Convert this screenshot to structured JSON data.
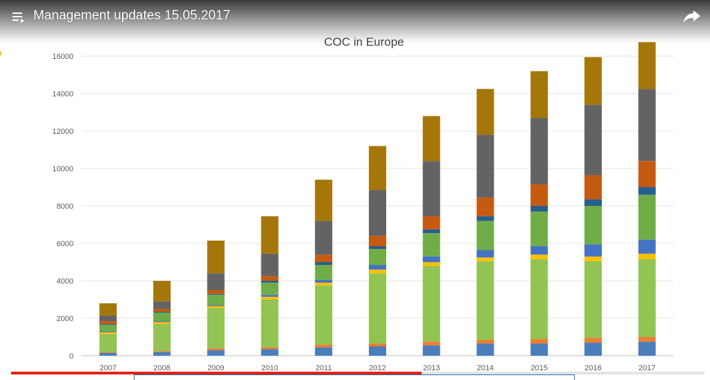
{
  "video": {
    "title": "Management updates 15.05.2017",
    "progress": 0.592,
    "icons": {
      "menu": "playlist-icon",
      "share": "share-icon"
    }
  },
  "chart_data": {
    "type": "bar",
    "stacked": true,
    "title": "COC in Europe",
    "xlabel": "",
    "ylabel": "",
    "ylim": [
      0,
      16000
    ],
    "yticks": [
      0,
      2000,
      4000,
      6000,
      8000,
      10000,
      12000,
      14000,
      16000
    ],
    "grid": true,
    "legend": "none",
    "categories": [
      "2007",
      "2008",
      "2009",
      "2010",
      "2011",
      "2012",
      "2013",
      "2014",
      "2015",
      "2016",
      "2017"
    ],
    "series": [
      {
        "color": "#4a7ebb",
        "values": [
          150,
          200,
          300,
          350,
          450,
          500,
          550,
          650,
          650,
          700,
          750
        ]
      },
      {
        "color": "#ed7d31",
        "values": [
          50,
          50,
          100,
          100,
          150,
          150,
          200,
          200,
          250,
          250,
          250
        ]
      },
      {
        "color": "#92c353",
        "values": [
          950,
          1450,
          2150,
          2550,
          3150,
          3750,
          4050,
          4200,
          4250,
          4100,
          4150
        ]
      },
      {
        "color": "#ffc000",
        "values": [
          100,
          100,
          100,
          150,
          150,
          200,
          200,
          200,
          250,
          250,
          300
        ]
      },
      {
        "color": "#4472c4",
        "values": [
          50,
          50,
          50,
          100,
          150,
          250,
          300,
          400,
          450,
          650,
          750
        ]
      },
      {
        "color": "#70ad47",
        "values": [
          350,
          450,
          550,
          650,
          800,
          850,
          1250,
          1550,
          1850,
          2050,
          2400
        ]
      },
      {
        "color": "#255e91",
        "values": [
          50,
          50,
          50,
          100,
          150,
          150,
          200,
          250,
          300,
          350,
          400
        ]
      },
      {
        "color": "#c55a11",
        "values": [
          150,
          150,
          200,
          250,
          400,
          550,
          700,
          1000,
          1150,
          1300,
          1400
        ]
      },
      {
        "color": "#636363",
        "values": [
          300,
          400,
          900,
          1200,
          1800,
          2450,
          2950,
          3350,
          3550,
          3750,
          3850
        ]
      },
      {
        "color": "#a5770b",
        "values": [
          650,
          1100,
          1750,
          2000,
          2200,
          2350,
          2400,
          2450,
          2500,
          2550,
          2500
        ]
      }
    ]
  }
}
